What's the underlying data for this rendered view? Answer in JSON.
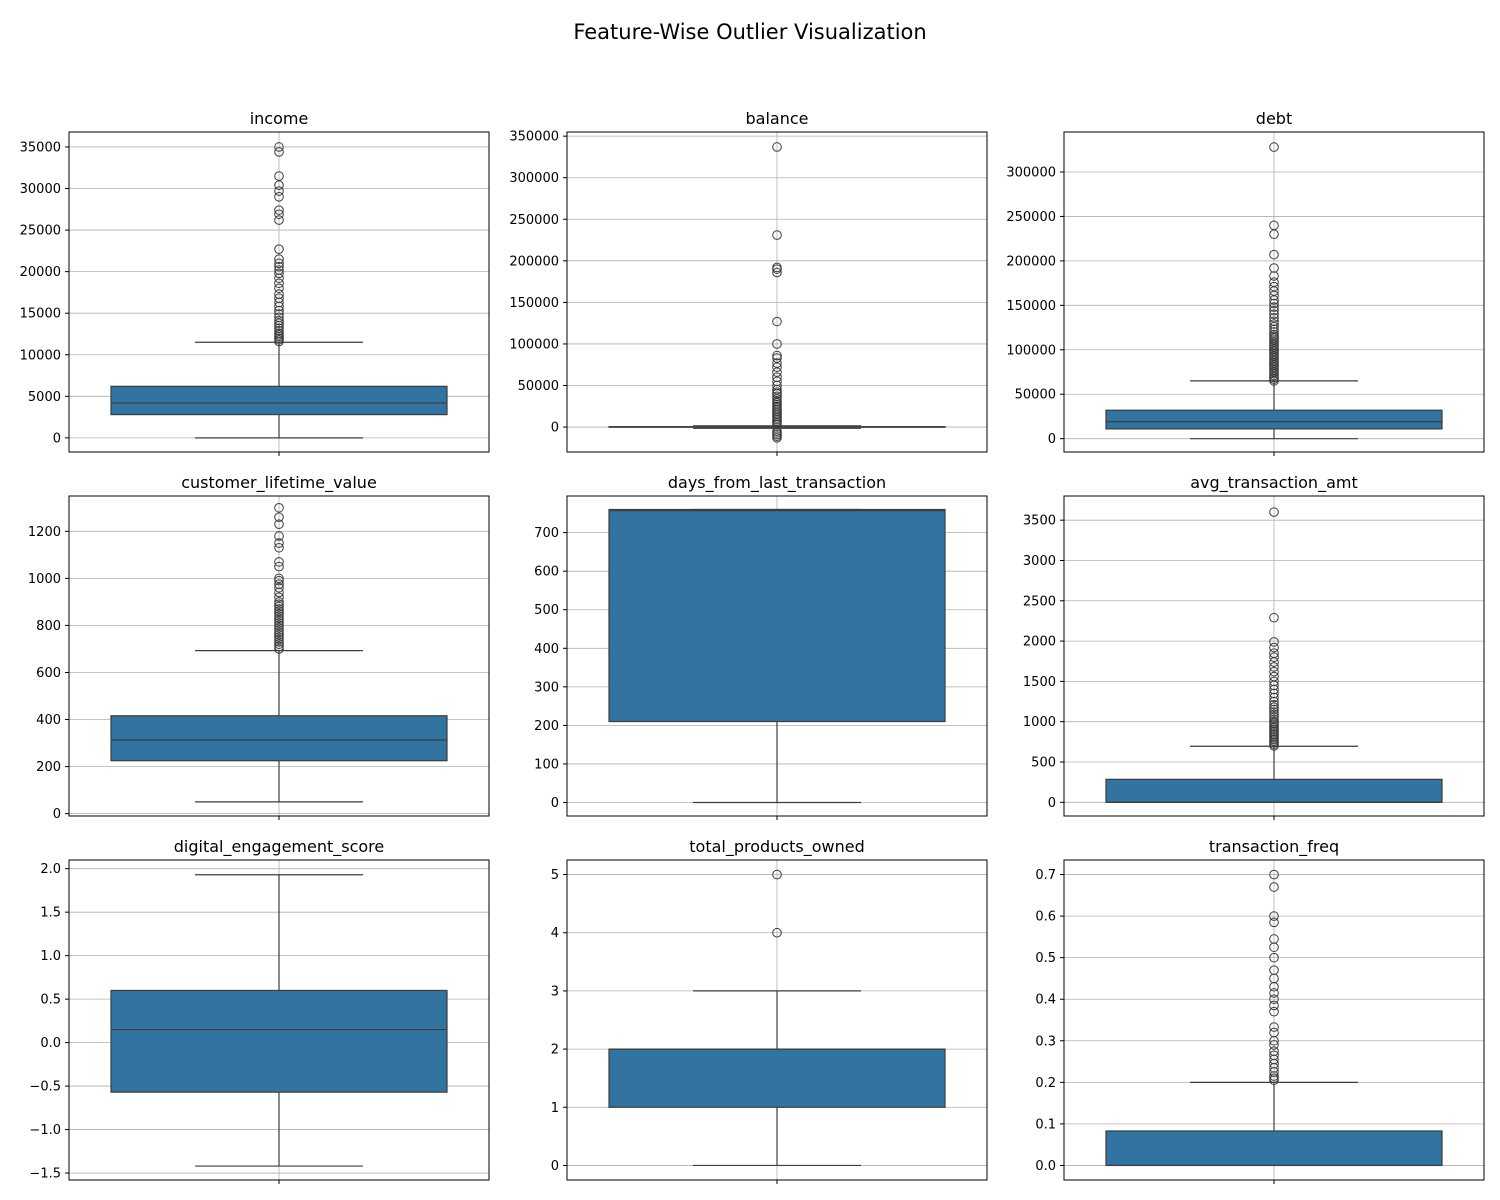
{
  "figure": {
    "title": "Feature-Wise Outlier Visualization"
  },
  "style": {
    "box_fill": "#3274a1",
    "line_color": "#3d3d3d",
    "grid_color": "#b0b0b0"
  },
  "chart_data": [
    {
      "type": "box",
      "title": "income",
      "ylim": [
        -1700,
        36800
      ],
      "yticks": [
        0,
        5000,
        10000,
        15000,
        20000,
        25000,
        30000,
        35000
      ],
      "ytick_labels": [
        "0",
        "5000",
        "10000",
        "15000",
        "20000",
        "25000",
        "30000",
        "35000"
      ],
      "whisker_low": 0,
      "q1": 2800,
      "median": 4200,
      "q3": 6200,
      "whisker_high": 11500,
      "outliers": [
        11600,
        11800,
        12000,
        12200,
        12400,
        12600,
        12900,
        13200,
        13500,
        13800,
        14100,
        14500,
        14900,
        15300,
        15800,
        16300,
        16800,
        17300,
        18000,
        18600,
        19200,
        19800,
        20200,
        20600,
        21000,
        21500,
        22700,
        26200,
        26900,
        27400,
        29000,
        29700,
        30400,
        31500,
        34400,
        35000
      ]
    },
    {
      "type": "box",
      "title": "balance",
      "ylim": [
        -30000,
        355000
      ],
      "yticks": [
        0,
        50000,
        100000,
        150000,
        200000,
        250000,
        300000,
        350000
      ],
      "ytick_labels": [
        "0",
        "50000",
        "100000",
        "150000",
        "200000",
        "250000",
        "300000",
        "350000"
      ],
      "whisker_low": -1500,
      "q1": -200,
      "median": 0,
      "q3": 500,
      "whisker_high": 1500,
      "outliers": [
        -13000,
        -11000,
        -9000,
        -7000,
        -5000,
        3000,
        5000,
        7000,
        9000,
        11000,
        13000,
        15000,
        17000,
        19000,
        21000,
        23000,
        25000,
        27000,
        29000,
        31000,
        34000,
        37000,
        40000,
        42000,
        45000,
        50000,
        55000,
        60000,
        66000,
        72000,
        77000,
        83000,
        86000,
        100000,
        127000,
        186000,
        190000,
        192000,
        231000,
        337000
      ]
    },
    {
      "type": "box",
      "title": "debt",
      "ylim": [
        -15000,
        345000
      ],
      "yticks": [
        0,
        50000,
        100000,
        150000,
        200000,
        250000,
        300000
      ],
      "ytick_labels": [
        "0",
        "50000",
        "100000",
        "150000",
        "200000",
        "250000",
        "300000"
      ],
      "whisker_low": 0,
      "q1": 11000,
      "median": 19000,
      "q3": 32000,
      "whisker_high": 65000,
      "outliers": [
        65000,
        67000,
        69000,
        71000,
        73000,
        75000,
        77000,
        79000,
        81000,
        83000,
        85000,
        87000,
        89000,
        91000,
        93000,
        95000,
        97000,
        99000,
        101000,
        103000,
        105000,
        107000,
        109000,
        111000,
        113000,
        115000,
        117000,
        120000,
        123000,
        126000,
        129000,
        132000,
        136000,
        140000,
        144000,
        148000,
        152000,
        156000,
        161000,
        166000,
        171000,
        176000,
        183000,
        192000,
        207000,
        230000,
        240000,
        328000
      ]
    },
    {
      "type": "box",
      "title": "customer_lifetime_value",
      "ylim": [
        -10,
        1350
      ],
      "yticks": [
        0,
        200,
        400,
        600,
        800,
        1000,
        1200
      ],
      "ytick_labels": [
        "0",
        "200",
        "400",
        "600",
        "800",
        "1000",
        "1200"
      ],
      "whisker_low": 50,
      "q1": 225,
      "median": 313,
      "q3": 416,
      "whisker_high": 693,
      "outliers": [
        700,
        710,
        720,
        730,
        740,
        750,
        760,
        770,
        780,
        790,
        800,
        810,
        820,
        830,
        840,
        850,
        860,
        870,
        880,
        890,
        900,
        920,
        940,
        960,
        975,
        990,
        1000,
        1050,
        1070,
        1130,
        1150,
        1180,
        1230,
        1260,
        1300
      ]
    },
    {
      "type": "box",
      "title": "days_from_last_transaction",
      "ylim": [
        -35,
        795
      ],
      "yticks": [
        0,
        100,
        200,
        300,
        400,
        500,
        600,
        700
      ],
      "ytick_labels": [
        "0",
        "100",
        "200",
        "300",
        "400",
        "500",
        "600",
        "700"
      ],
      "whisker_low": 0,
      "q1": 210,
      "median": 757,
      "q3": 760,
      "whisker_high": 760,
      "outliers": []
    },
    {
      "type": "box",
      "title": "avg_transaction_amt",
      "ylim": [
        -170,
        3800
      ],
      "yticks": [
        0,
        500,
        1000,
        1500,
        2000,
        2500,
        3000,
        3500
      ],
      "ytick_labels": [
        "0",
        "500",
        "1000",
        "1500",
        "2000",
        "2500",
        "3000",
        "3500"
      ],
      "whisker_low": 0,
      "q1": 0,
      "median": 0,
      "q3": 285,
      "whisker_high": 695,
      "outliers": [
        700,
        720,
        740,
        760,
        780,
        800,
        820,
        840,
        860,
        880,
        900,
        920,
        940,
        960,
        980,
        1000,
        1030,
        1060,
        1090,
        1120,
        1150,
        1180,
        1210,
        1250,
        1300,
        1350,
        1400,
        1450,
        1500,
        1560,
        1620,
        1680,
        1740,
        1800,
        1850,
        1920,
        1990,
        2290,
        3600
      ]
    },
    {
      "type": "box",
      "title": "digital_engagement_score",
      "ylim": [
        -1.58,
        2.1
      ],
      "yticks": [
        -1.5,
        -1.0,
        -0.5,
        0.0,
        0.5,
        1.0,
        1.5,
        2.0
      ],
      "ytick_labels": [
        "−1.5",
        "−1.0",
        "−0.5",
        "0.0",
        "0.5",
        "1.0",
        "1.5",
        "2.0"
      ],
      "whisker_low": -1.42,
      "q1": -0.57,
      "median": 0.15,
      "q3": 0.6,
      "whisker_high": 1.93,
      "outliers": []
    },
    {
      "type": "box",
      "title": "total_products_owned",
      "ylim": [
        -0.25,
        5.25
      ],
      "yticks": [
        0,
        1,
        2,
        3,
        4,
        5
      ],
      "ytick_labels": [
        "0",
        "1",
        "2",
        "3",
        "4",
        "5"
      ],
      "whisker_low": 0,
      "q1": 1,
      "median": 2,
      "q3": 2,
      "whisker_high": 3,
      "outliers": [
        4,
        5
      ]
    },
    {
      "type": "box",
      "title": "transaction_freq",
      "ylim": [
        -0.035,
        0.735
      ],
      "yticks": [
        0.0,
        0.1,
        0.2,
        0.3,
        0.4,
        0.5,
        0.6,
        0.7
      ],
      "ytick_labels": [
        "0.0",
        "0.1",
        "0.2",
        "0.3",
        "0.4",
        "0.5",
        "0.6",
        "0.7"
      ],
      "whisker_low": 0,
      "q1": 0,
      "median": 0,
      "q3": 0.083,
      "whisker_high": 0.2,
      "outliers": [
        0.205,
        0.21,
        0.215,
        0.225,
        0.235,
        0.245,
        0.255,
        0.265,
        0.275,
        0.29,
        0.3,
        0.32,
        0.333,
        0.37,
        0.385,
        0.4,
        0.415,
        0.43,
        0.45,
        0.47,
        0.5,
        0.525,
        0.545,
        0.585,
        0.6,
        0.67,
        0.7
      ]
    }
  ]
}
